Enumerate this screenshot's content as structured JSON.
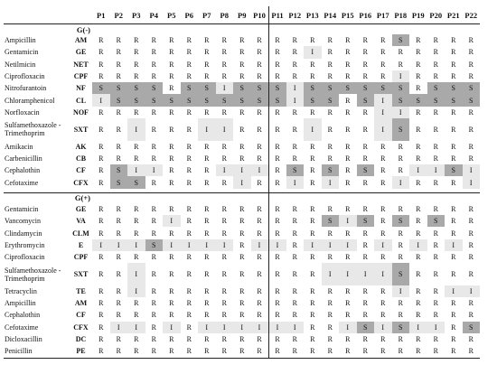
{
  "columns": [
    "P1",
    "P2",
    "P3",
    "P4",
    "P5",
    "P6",
    "P7",
    "P8",
    "P9",
    "P10",
    "P11",
    "P12",
    "P13",
    "P14",
    "P15",
    "P16",
    "P17",
    "P18",
    "P19",
    "P20",
    "P21",
    "P22"
  ],
  "colors": {
    "S": "#a9a9a9",
    "I": "#e8e8e8"
  },
  "groups": [
    {
      "label": "G(-)",
      "rows": [
        {
          "name": "Ampicillin",
          "abbr": "AM",
          "values": [
            "R",
            "R",
            "R",
            "R",
            "R",
            "R",
            "R",
            "R",
            "R",
            "R",
            "R",
            "R",
            "R",
            "R",
            "R",
            "R",
            "R",
            "S",
            "R",
            "R",
            "R",
            "R"
          ]
        },
        {
          "name": "Gentamicin",
          "abbr": "GE",
          "values": [
            "R",
            "R",
            "R",
            "R",
            "R",
            "R",
            "R",
            "R",
            "R",
            "R",
            "R",
            "R",
            "I",
            "R",
            "R",
            "R",
            "R",
            "R",
            "R",
            "R",
            "R",
            "R"
          ]
        },
        {
          "name": "Netilmicin",
          "abbr": "NET",
          "values": [
            "R",
            "R",
            "R",
            "R",
            "R",
            "R",
            "R",
            "R",
            "R",
            "R",
            "R",
            "R",
            "R",
            "R",
            "R",
            "R",
            "R",
            "R",
            "R",
            "R",
            "R",
            "R"
          ]
        },
        {
          "name": "Ciprofloxacin",
          "abbr": "CPF",
          "values": [
            "R",
            "R",
            "R",
            "R",
            "R",
            "R",
            "R",
            "R",
            "R",
            "R",
            "R",
            "R",
            "R",
            "R",
            "R",
            "R",
            "R",
            "I",
            "R",
            "R",
            "R",
            "R"
          ]
        },
        {
          "name": "Nitrofurantoin",
          "abbr": "NF",
          "values": [
            "S",
            "S",
            "S",
            "S",
            "R",
            "S",
            "S",
            "I",
            "S",
            "S",
            "S",
            "I",
            "S",
            "S",
            "S",
            "S",
            "S",
            "S",
            "R",
            "S",
            "S",
            "S"
          ]
        },
        {
          "name": "Chloramphenicol",
          "abbr": "CL",
          "values": [
            "I",
            "S",
            "S",
            "S",
            "S",
            "S",
            "S",
            "S",
            "S",
            "S",
            "S",
            "I",
            "S",
            "S",
            "R",
            "S",
            "I",
            "S",
            "S",
            "S",
            "S",
            "S"
          ]
        },
        {
          "name": "Norfloxacin",
          "abbr": "NOF",
          "values": [
            "R",
            "R",
            "R",
            "R",
            "R",
            "R",
            "R",
            "R",
            "R",
            "R",
            "R",
            "R",
            "R",
            "R",
            "R",
            "R",
            "I",
            "I",
            "R",
            "R",
            "R",
            "R"
          ]
        },
        {
          "name": "Sulfamethoxazole -Trimethoprim",
          "abbr": "SXT",
          "tall": true,
          "values": [
            "R",
            "R",
            "I",
            "R",
            "R",
            "R",
            "I",
            "I",
            "R",
            "R",
            "R",
            "R",
            "I",
            "R",
            "R",
            "R",
            "I",
            "S",
            "R",
            "R",
            "R",
            "R"
          ]
        },
        {
          "name": "Amikacin",
          "abbr": "AK",
          "values": [
            "R",
            "R",
            "R",
            "R",
            "R",
            "R",
            "R",
            "R",
            "R",
            "R",
            "R",
            "R",
            "R",
            "R",
            "R",
            "R",
            "R",
            "R",
            "R",
            "R",
            "R",
            "R"
          ]
        },
        {
          "name": "Carbenicillin",
          "abbr": "CB",
          "values": [
            "R",
            "R",
            "R",
            "R",
            "R",
            "R",
            "R",
            "R",
            "R",
            "R",
            "R",
            "R",
            "R",
            "R",
            "R",
            "R",
            "R",
            "R",
            "R",
            "R",
            "R",
            "R"
          ]
        },
        {
          "name": "Cephalothin",
          "abbr": "CF",
          "values": [
            "R",
            "S",
            "I",
            "I",
            "R",
            "R",
            "R",
            "I",
            "I",
            "I",
            "R",
            "S",
            "R",
            "S",
            "R",
            "S",
            "R",
            "R",
            "I",
            "I",
            "S",
            "I"
          ]
        },
        {
          "name": "Cefotaxime",
          "abbr": "CFX",
          "values": [
            "R",
            "S",
            "S",
            "R",
            "R",
            "R",
            "R",
            "R",
            "I",
            "R",
            "R",
            "I",
            "R",
            "I",
            "R",
            "R",
            "R",
            "I",
            "R",
            "R",
            "R",
            "I"
          ]
        }
      ]
    },
    {
      "label": "G(+)",
      "rows": [
        {
          "name": "Gentamicin",
          "abbr": "GE",
          "values": [
            "R",
            "R",
            "R",
            "R",
            "R",
            "R",
            "R",
            "R",
            "R",
            "R",
            "R",
            "R",
            "R",
            "R",
            "R",
            "R",
            "R",
            "R",
            "R",
            "R",
            "R",
            "R"
          ]
        },
        {
          "name": "Vancomycin",
          "abbr": "VA",
          "values": [
            "R",
            "R",
            "R",
            "R",
            "I",
            "R",
            "R",
            "R",
            "R",
            "R",
            "R",
            "R",
            "R",
            "S",
            "I",
            "S",
            "R",
            "S",
            "R",
            "S",
            "R",
            "R"
          ]
        },
        {
          "name": "Clindamycin",
          "abbr": "CLM",
          "values": [
            "R",
            "R",
            "R",
            "R",
            "R",
            "R",
            "R",
            "R",
            "R",
            "R",
            "R",
            "R",
            "R",
            "R",
            "R",
            "R",
            "R",
            "R",
            "R",
            "R",
            "R",
            "R"
          ]
        },
        {
          "name": "Erythromycin",
          "abbr": "E",
          "values": [
            "I",
            "I",
            "I",
            "S",
            "I",
            "I",
            "I",
            "I",
            "R",
            "I",
            "I",
            "R",
            "I",
            "I",
            "I",
            "R",
            "I",
            "R",
            "I",
            "R",
            "I",
            "R"
          ]
        },
        {
          "name": "Ciprofloxacin",
          "abbr": "CPF",
          "values": [
            "R",
            "R",
            "R",
            "R",
            "R",
            "R",
            "R",
            "R",
            "R",
            "R",
            "R",
            "R",
            "R",
            "R",
            "R",
            "R",
            "R",
            "R",
            "R",
            "R",
            "R",
            "R"
          ]
        },
        {
          "name": "Sulfamethoxazole -Trimethoprim",
          "abbr": "SXT",
          "tall": true,
          "values": [
            "R",
            "R",
            "I",
            "R",
            "R",
            "R",
            "R",
            "R",
            "R",
            "R",
            "R",
            "R",
            "R",
            "I",
            "I",
            "I",
            "I",
            "S",
            "R",
            "R",
            "R",
            "R"
          ]
        },
        {
          "name": "Tetracyclin",
          "abbr": "TE",
          "values": [
            "R",
            "R",
            "I",
            "R",
            "R",
            "R",
            "R",
            "R",
            "R",
            "R",
            "R",
            "R",
            "R",
            "R",
            "R",
            "R",
            "R",
            "I",
            "R",
            "R",
            "I",
            "I"
          ]
        },
        {
          "name": "Ampicillin",
          "abbr": "AM",
          "values": [
            "R",
            "R",
            "R",
            "R",
            "R",
            "R",
            "R",
            "R",
            "R",
            "R",
            "R",
            "R",
            "R",
            "R",
            "R",
            "R",
            "R",
            "R",
            "R",
            "R",
            "R",
            "R"
          ]
        },
        {
          "name": "Cephalothin",
          "abbr": "CF",
          "values": [
            "R",
            "R",
            "R",
            "R",
            "R",
            "R",
            "R",
            "R",
            "R",
            "R",
            "R",
            "R",
            "R",
            "R",
            "R",
            "R",
            "R",
            "R",
            "R",
            "R",
            "R",
            "R"
          ]
        },
        {
          "name": "Cefotaxime",
          "abbr": "CFX",
          "values": [
            "R",
            "I",
            "I",
            "R",
            "I",
            "R",
            "I",
            "I",
            "I",
            "I",
            "I",
            "I",
            "R",
            "R",
            "I",
            "S",
            "I",
            "S",
            "I",
            "I",
            "R",
            "S"
          ]
        },
        {
          "name": "Dicloxacillin",
          "abbr": "DC",
          "values": [
            "R",
            "R",
            "R",
            "R",
            "R",
            "R",
            "R",
            "R",
            "R",
            "R",
            "R",
            "R",
            "R",
            "R",
            "R",
            "R",
            "R",
            "R",
            "R",
            "R",
            "R",
            "R"
          ]
        },
        {
          "name": "Penicillin",
          "abbr": "PE",
          "values": [
            "R",
            "R",
            "R",
            "R",
            "R",
            "R",
            "R",
            "R",
            "R",
            "R",
            "R",
            "R",
            "R",
            "R",
            "R",
            "R",
            "R",
            "R",
            "R",
            "R",
            "R",
            "R"
          ]
        }
      ]
    }
  ]
}
